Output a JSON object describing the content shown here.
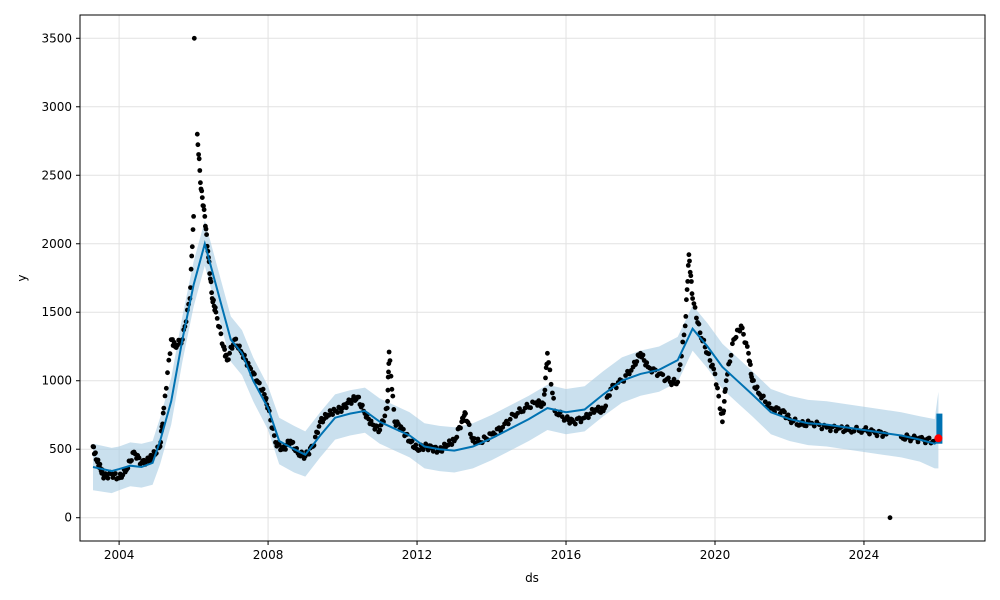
{
  "chart_data": {
    "type": "line",
    "xlabel": "ds",
    "ylabel": "y",
    "xlim": [
      2002.95,
      2027.25
    ],
    "ylim": [
      -170,
      3670
    ],
    "grid": true,
    "x_ticks": [
      2004,
      2008,
      2012,
      2016,
      2020,
      2024
    ],
    "x_tick_labels": [
      "2004",
      "2008",
      "2012",
      "2016",
      "2020",
      "2024"
    ],
    "y_ticks": [
      0,
      500,
      1000,
      1500,
      2000,
      2500,
      3000,
      3500
    ],
    "y_tick_labels": [
      "0",
      "500",
      "1000",
      "1500",
      "2000",
      "2500",
      "3000",
      "3500"
    ],
    "colors": {
      "observed": "#000000",
      "forecast": "#0072B2",
      "interval": "#A6CBE3",
      "last_point": "#ff0000"
    },
    "forecast": {
      "x": [
        2003.3,
        2003.8,
        2004.0,
        2004.3,
        2004.6,
        2004.9,
        2005.1,
        2005.4,
        2005.7,
        2006.0,
        2006.3,
        2006.6,
        2007.0,
        2007.3,
        2007.6,
        2008.0,
        2008.3,
        2008.7,
        2009.0,
        2009.4,
        2009.8,
        2010.2,
        2010.6,
        2011.0,
        2011.4,
        2011.8,
        2012.2,
        2012.6,
        2013.0,
        2013.5,
        2014.0,
        2014.5,
        2015.0,
        2015.5,
        2016.0,
        2016.5,
        2017.0,
        2017.5,
        2018.0,
        2018.5,
        2019.0,
        2019.4,
        2019.8,
        2020.2,
        2020.6,
        2021.0,
        2021.5,
        2022.0,
        2022.5,
        2023.0,
        2023.5,
        2024.0,
        2024.5,
        2025.0,
        2025.5,
        2025.9,
        2026.0
      ],
      "yhat": [
        370,
        340,
        355,
        380,
        370,
        400,
        560,
        850,
        1300,
        1700,
        2000,
        1700,
        1300,
        1200,
        1000,
        800,
        560,
        500,
        460,
        600,
        730,
        760,
        780,
        700,
        650,
        600,
        520,
        500,
        490,
        520,
        580,
        650,
        720,
        800,
        770,
        790,
        900,
        1000,
        1050,
        1080,
        1150,
        1380,
        1250,
        1100,
        1000,
        900,
        770,
        720,
        690,
        680,
        660,
        640,
        620,
        600,
        570,
        540,
        560
      ],
      "lower": [
        200,
        180,
        200,
        230,
        220,
        240,
        390,
        680,
        1140,
        1540,
        1840,
        1540,
        1140,
        1040,
        850,
        640,
        390,
        330,
        300,
        440,
        570,
        600,
        620,
        540,
        490,
        440,
        360,
        340,
        330,
        360,
        420,
        490,
        560,
        640,
        610,
        630,
        740,
        840,
        890,
        920,
        990,
        1220,
        1090,
        940,
        840,
        740,
        610,
        560,
        530,
        520,
        500,
        480,
        460,
        440,
        410,
        360,
        360
      ],
      "upper": [
        540,
        510,
        520,
        550,
        540,
        560,
        730,
        1020,
        1470,
        1870,
        2170,
        1870,
        1470,
        1370,
        1170,
        960,
        730,
        670,
        630,
        770,
        900,
        930,
        950,
        870,
        820,
        770,
        690,
        670,
        660,
        690,
        750,
        820,
        890,
        970,
        940,
        960,
        1070,
        1170,
        1220,
        1250,
        1320,
        1550,
        1420,
        1270,
        1170,
        1070,
        940,
        890,
        860,
        850,
        830,
        810,
        790,
        770,
        740,
        720,
        920
      ]
    },
    "observed": {
      "x": [
        2003.3,
        2003.4,
        2003.5,
        2003.6,
        2003.8,
        2004.0,
        2004.2,
        2004.4,
        2004.6,
        2004.8,
        2004.9,
        2005.1,
        2005.2,
        2005.4,
        2005.5,
        2005.7,
        2005.9,
        2006.0,
        2006.02,
        2006.1,
        2006.2,
        2006.3,
        2006.4,
        2006.5,
        2006.6,
        2006.8,
        2006.9,
        2007.1,
        2007.3,
        2007.5,
        2007.7,
        2007.9,
        2008.0,
        2008.2,
        2008.4,
        2008.6,
        2008.8,
        2009.0,
        2009.2,
        2009.4,
        2009.6,
        2009.8,
        2010.0,
        2010.2,
        2010.4,
        2010.6,
        2010.8,
        2011.0,
        2011.2,
        2011.25,
        2011.4,
        2011.6,
        2011.8,
        2012.0,
        2012.2,
        2012.4,
        2012.6,
        2012.8,
        2013.0,
        2013.2,
        2013.3,
        2013.5,
        2013.7,
        2014.0,
        2014.3,
        2014.6,
        2014.9,
        2015.2,
        2015.4,
        2015.5,
        2015.7,
        2016.0,
        2016.2,
        2016.5,
        2016.8,
        2017.0,
        2017.2,
        2017.5,
        2017.8,
        2018.0,
        2018.2,
        2018.5,
        2018.8,
        2019.0,
        2019.2,
        2019.3,
        2019.4,
        2019.6,
        2019.8,
        2020.0,
        2020.2,
        2020.3,
        2020.5,
        2020.7,
        2020.9,
        2021.0,
        2021.2,
        2021.5,
        2021.8,
        2022.0,
        2022.3,
        2022.6,
        2023.0,
        2023.3,
        2023.6,
        2024.0,
        2024.3,
        2024.6,
        2024.7,
        2025.0,
        2025.3,
        2025.6,
        2025.9
      ],
      "y": [
        520,
        420,
        360,
        300,
        320,
        290,
        350,
        480,
        400,
        420,
        450,
        520,
        800,
        1300,
        1250,
        1300,
        1600,
        2200,
        3500,
        2800,
        2400,
        2200,
        1900,
        1600,
        1500,
        1250,
        1150,
        1300,
        1200,
        1100,
        1000,
        900,
        800,
        550,
        500,
        560,
        470,
        450,
        520,
        700,
        750,
        780,
        800,
        850,
        880,
        760,
        680,
        640,
        800,
        1210,
        700,
        650,
        560,
        500,
        520,
        510,
        490,
        530,
        560,
        700,
        760,
        560,
        550,
        610,
        660,
        750,
        800,
        840,
        830,
        1200,
        780,
        720,
        700,
        730,
        790,
        780,
        940,
        1000,
        1100,
        1200,
        1100,
        1050,
        990,
        990,
        1400,
        1920,
        1600,
        1350,
        1200,
        1050,
        700,
        1000,
        1300,
        1400,
        1200,
        1000,
        900,
        800,
        780,
        720,
        680,
        690,
        660,
        650,
        640,
        640,
        620,
        610,
        0,
        590,
        580,
        570,
        560
      ]
    },
    "last_point": {
      "x": 2026.0,
      "y": 580
    }
  }
}
